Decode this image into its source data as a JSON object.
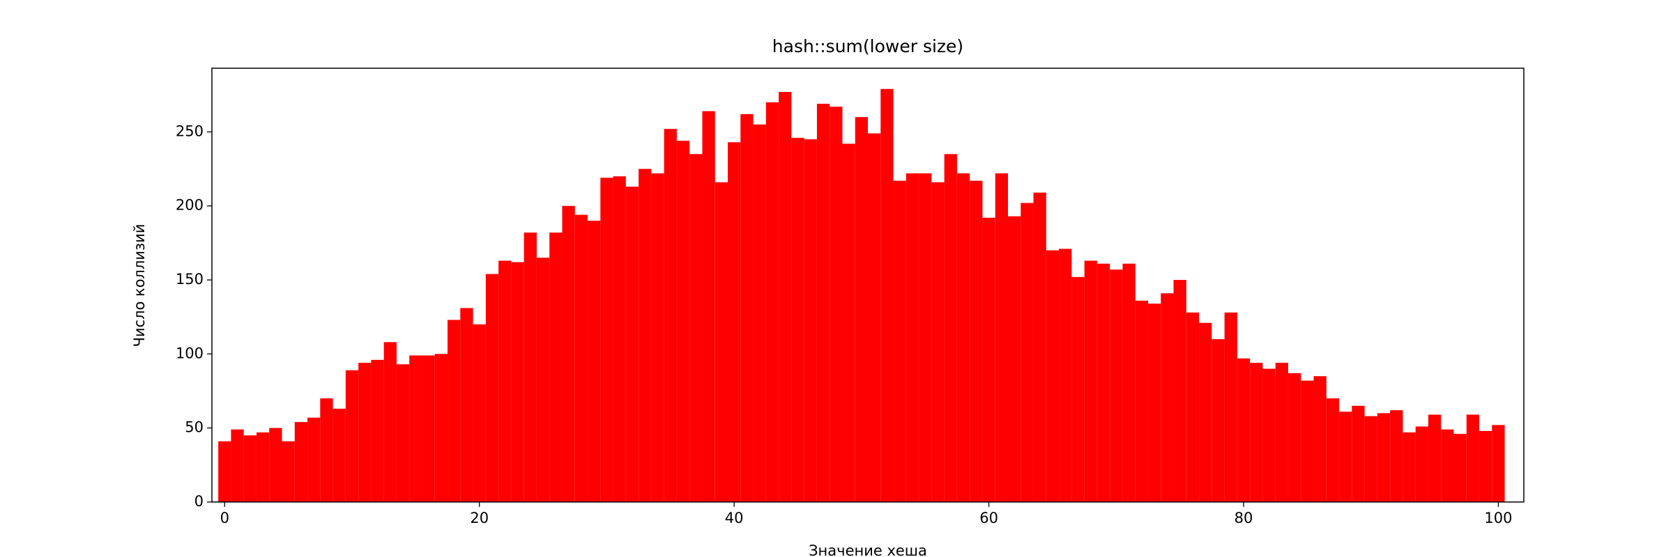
{
  "chart_data": {
    "type": "histogram",
    "title": "hash::sum(lower size)",
    "xlabel": "Значение хеша",
    "ylabel": "Число коллизий",
    "color": "#ff0000",
    "bins": [
      -0.5,
      0.5,
      1.5,
      2.5,
      3.5,
      4.5,
      5.5,
      6.5,
      7.5,
      8.5,
      9.5,
      10.5,
      11.5,
      12.5,
      13.5,
      14.5,
      15.5,
      16.5,
      17.5,
      18.5,
      19.5,
      20.5,
      21.5,
      22.5,
      23.5,
      24.5,
      25.5,
      26.5,
      27.5,
      28.5,
      29.5,
      30.5,
      31.5,
      32.5,
      33.5,
      34.5,
      35.5,
      36.5,
      37.5,
      38.5,
      39.5,
      40.5,
      41.5,
      42.5,
      43.5,
      44.5,
      45.5,
      46.5,
      47.5,
      48.5,
      49.5,
      50.5,
      51.5,
      52.5,
      53.5,
      54.5,
      55.5,
      56.5,
      57.5,
      58.5,
      59.5,
      60.5,
      61.5,
      62.5,
      63.5,
      64.5,
      65.5,
      66.5,
      67.5,
      68.5,
      69.5,
      70.5,
      71.5,
      72.5,
      73.5,
      74.5,
      75.5,
      76.5,
      77.5,
      78.5,
      79.5,
      80.5,
      81.5,
      82.5,
      83.5,
      84.5,
      85.5,
      86.5,
      87.5,
      88.5,
      89.5,
      90.5,
      91.5,
      92.5,
      93.5,
      94.5,
      95.5,
      96.5,
      97.5,
      98.5,
      99.5,
      100.5
    ],
    "values": [
      41,
      49,
      45,
      47,
      50,
      41,
      54,
      57,
      70,
      63,
      89,
      94,
      96,
      108,
      93,
      99,
      99,
      100,
      123,
      131,
      120,
      154,
      163,
      162,
      182,
      165,
      182,
      200,
      194,
      190,
      219,
      220,
      213,
      225,
      222,
      252,
      244,
      235,
      264,
      216,
      243,
      262,
      255,
      270,
      277,
      246,
      245,
      269,
      267,
      242,
      260,
      249,
      279,
      217,
      222,
      222,
      216,
      235,
      222,
      217,
      192,
      222,
      193,
      202,
      209,
      170,
      171,
      152,
      163,
      161,
      157,
      161,
      136,
      134,
      141,
      150,
      128,
      121,
      110,
      128,
      97,
      94,
      90,
      94,
      87,
      82,
      85,
      70,
      61,
      65,
      58,
      60,
      62,
      47,
      51,
      59,
      49,
      46,
      59,
      48,
      52
    ],
    "xlim": [
      -1,
      102
    ],
    "ylim": [
      0,
      293
    ],
    "xticks": [
      0,
      20,
      40,
      60,
      80,
      100
    ],
    "yticks": [
      0,
      50,
      100,
      150,
      200,
      250
    ]
  }
}
